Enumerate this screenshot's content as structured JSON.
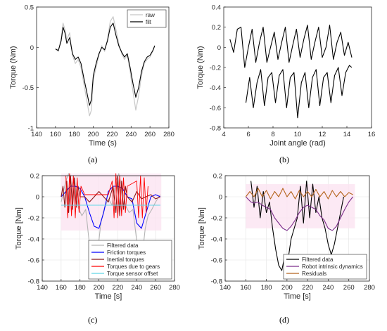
{
  "figure": {
    "captions": [
      "(a)",
      "(b)",
      "(c)",
      "(d)"
    ]
  },
  "chart_data": [
    {
      "id": "a",
      "type": "line",
      "xlabel": "Time (s)",
      "ylabel": "Torque (Nm)",
      "xlim": [
        140,
        280
      ],
      "ylim": [
        -1,
        0.5
      ],
      "xticks": [
        140,
        160,
        180,
        200,
        220,
        240,
        260,
        280
      ],
      "yticks": [
        -1,
        -0.5,
        0,
        0.5
      ],
      "xtick_labels": [
        "140",
        "160",
        "180",
        "200",
        "220",
        "240",
        "260",
        "280"
      ],
      "ytick_labels": [
        "-1",
        "-0.5",
        "0",
        "0.5"
      ],
      "grid": false,
      "legend_position": "top-right",
      "series": [
        {
          "name": "raw",
          "color": "#c8c8c8",
          "x": [
            160,
            163,
            166,
            168,
            170,
            172,
            175,
            178,
            181,
            184,
            187,
            190,
            193,
            196,
            198,
            200,
            203,
            206,
            209,
            212,
            215,
            218,
            221,
            224,
            227,
            230,
            233,
            236,
            239,
            242,
            245,
            248,
            251,
            254,
            257,
            260,
            263,
            265
          ],
          "y": [
            -0.02,
            -0.05,
            0.12,
            0.3,
            0.22,
            0.1,
            0.18,
            -0.1,
            -0.2,
            -0.15,
            -0.25,
            -0.45,
            -0.65,
            -0.85,
            -0.78,
            -0.4,
            -0.25,
            -0.1,
            0.02,
            -0.05,
            0.1,
            0.32,
            0.38,
            0.22,
            0.05,
            -0.08,
            -0.15,
            -0.1,
            -0.3,
            -0.55,
            -0.78,
            -0.6,
            -0.35,
            -0.2,
            -0.15,
            -0.12,
            -0.05,
            0.02
          ]
        },
        {
          "name": "filt",
          "color": "#000000",
          "x": [
            160,
            163,
            166,
            168,
            170,
            172,
            175,
            178,
            181,
            184,
            187,
            190,
            193,
            196,
            198,
            200,
            203,
            206,
            209,
            212,
            215,
            218,
            221,
            224,
            227,
            230,
            233,
            236,
            239,
            242,
            245,
            248,
            251,
            254,
            257,
            260,
            263,
            265
          ],
          "y": [
            -0.02,
            -0.04,
            0.08,
            0.25,
            0.18,
            0.05,
            0.12,
            -0.08,
            -0.15,
            -0.12,
            -0.2,
            -0.38,
            -0.55,
            -0.72,
            -0.65,
            -0.35,
            -0.2,
            -0.08,
            0.0,
            -0.03,
            0.08,
            0.25,
            0.3,
            0.15,
            0.02,
            -0.06,
            -0.12,
            -0.08,
            -0.25,
            -0.45,
            -0.62,
            -0.5,
            -0.3,
            -0.18,
            -0.12,
            -0.1,
            -0.04,
            0.02
          ]
        }
      ]
    },
    {
      "id": "b",
      "type": "line",
      "xlabel": "Joint angle (rad)",
      "ylabel": "Torque (Nm)",
      "xlim": [
        4,
        16
      ],
      "ylim": [
        -0.8,
        0.4
      ],
      "xticks": [
        4,
        6,
        8,
        10,
        12,
        14,
        16
      ],
      "yticks": [
        -0.8,
        -0.6,
        -0.4,
        -0.2,
        0,
        0.2,
        0.4
      ],
      "xtick_labels": [
        "4",
        "6",
        "8",
        "10",
        "12",
        "14",
        "16"
      ],
      "ytick_labels": [
        "-0.8",
        "-0.6",
        "-0.4",
        "-0.2",
        "0",
        "0.2",
        "0.4"
      ],
      "grid": false,
      "series": [
        {
          "color": "#000000",
          "x": [
            4.5,
            4.8,
            5.1,
            5.4,
            5.7,
            6.0,
            6.3,
            6.6,
            6.9,
            7.2,
            7.5,
            7.8,
            8.1,
            8.4,
            8.7,
            9.0,
            9.3,
            9.6,
            9.9,
            10.2,
            10.5,
            10.8,
            11.1,
            11.4,
            11.7,
            12.0,
            12.3,
            12.6,
            12.9,
            13.2,
            13.5,
            13.8,
            14.1,
            14.4
          ],
          "y": [
            0.08,
            -0.05,
            0.18,
            0.2,
            -0.2,
            0.0,
            0.18,
            -0.15,
            0.05,
            0.2,
            -0.15,
            0.0,
            0.15,
            -0.12,
            0.05,
            0.2,
            -0.15,
            0.02,
            0.18,
            -0.1,
            0.08,
            0.22,
            -0.12,
            0.05,
            0.2,
            -0.1,
            0.0,
            0.22,
            -0.12,
            0.05,
            0.15,
            -0.08,
            0.05,
            -0.1
          ]
        },
        {
          "color": "#000000",
          "x": [
            5.8,
            6.1,
            6.4,
            6.7,
            7.0,
            7.3,
            7.6,
            7.9,
            8.2,
            8.5,
            8.8,
            9.1,
            9.4,
            9.7,
            10.0,
            10.3,
            10.6,
            10.9,
            11.2,
            11.5,
            11.8,
            12.1,
            12.4,
            12.7,
            13.0,
            13.3,
            13.6,
            13.9,
            14.2,
            14.4
          ],
          "y": [
            -0.55,
            -0.3,
            -0.6,
            -0.35,
            -0.22,
            -0.58,
            -0.3,
            -0.25,
            -0.55,
            -0.28,
            -0.22,
            -0.6,
            -0.3,
            -0.25,
            -0.7,
            -0.35,
            -0.25,
            -0.6,
            -0.3,
            -0.22,
            -0.58,
            -0.3,
            -0.25,
            -0.55,
            -0.28,
            -0.2,
            -0.48,
            -0.25,
            -0.18,
            -0.2
          ]
        }
      ]
    },
    {
      "id": "c",
      "type": "line",
      "xlabel": "Time [s]",
      "ylabel": "Torque [Nm]",
      "xlim": [
        140,
        280
      ],
      "ylim": [
        -0.8,
        0.2
      ],
      "xticks": [
        140,
        160,
        180,
        200,
        220,
        240,
        260,
        280
      ],
      "yticks": [
        -0.8,
        -0.6,
        -0.4,
        -0.2,
        0,
        0.2
      ],
      "xtick_labels": [
        "140",
        "160",
        "180",
        "200",
        "220",
        "240",
        "260",
        "280"
      ],
      "ytick_labels": [
        "-0.8",
        "-0.6",
        "-0.4",
        "-0.2",
        "0",
        "0.2"
      ],
      "grid": true,
      "legend_position": "bottom-right",
      "series": [
        {
          "name": "Filtered data",
          "color": "#b4b4b4",
          "x": [
            160,
            165,
            168,
            171,
            174,
            178,
            182,
            186,
            190,
            193,
            196,
            199,
            202,
            206,
            210,
            214,
            218,
            221,
            224,
            228,
            232,
            236,
            240,
            243,
            246,
            249,
            252,
            256,
            260,
            265
          ],
          "y": [
            -0.05,
            0.15,
            0.22,
            0.1,
            0.18,
            -0.1,
            -0.18,
            -0.12,
            -0.45,
            -0.65,
            -0.72,
            -0.5,
            -0.25,
            -0.1,
            -0.02,
            -0.08,
            0.15,
            0.22,
            0.1,
            -0.08,
            -0.15,
            -0.12,
            -0.42,
            -0.6,
            -0.55,
            -0.3,
            -0.18,
            -0.12,
            -0.05,
            0.02
          ]
        },
        {
          "name": "Friction torques",
          "color": "#0000ff",
          "x": [
            160,
            165,
            170,
            175,
            180,
            185,
            190,
            195,
            200,
            205,
            210,
            215,
            220,
            225,
            230,
            235,
            240,
            245,
            250,
            255,
            260,
            265
          ],
          "y": [
            0.0,
            0.05,
            0.1,
            0.1,
            0.08,
            0.0,
            -0.15,
            -0.28,
            -0.3,
            -0.15,
            0.05,
            0.1,
            0.1,
            0.08,
            0.0,
            -0.02,
            -0.25,
            -0.3,
            -0.15,
            0.0,
            0.02,
            0.0
          ]
        },
        {
          "name": "Inertial torques",
          "color": "#8b1a1a",
          "x": [
            160,
            162,
            164,
            166,
            168,
            170,
            172,
            174,
            176,
            178,
            180,
            185,
            190,
            195,
            200,
            205,
            210,
            215,
            218,
            220,
            222,
            224,
            226,
            228,
            230,
            235,
            240,
            245,
            250,
            255,
            260,
            265
          ],
          "y": [
            0.0,
            0.1,
            -0.1,
            0.15,
            -0.15,
            0.2,
            -0.12,
            0.18,
            -0.1,
            0.1,
            0.0,
            0.0,
            -0.05,
            0.0,
            0.05,
            0.0,
            -0.05,
            0.1,
            -0.15,
            0.2,
            -0.18,
            0.15,
            -0.12,
            0.1,
            0.0,
            -0.05,
            0.05,
            -0.02,
            0.0,
            0.02,
            -0.02,
            0.0
          ]
        },
        {
          "name": "Torques due to gears",
          "color": "#ff0000",
          "x": [
            165,
            167,
            169,
            171,
            173,
            175,
            177,
            179,
            181,
            185,
            190,
            195,
            200,
            205,
            210,
            214,
            216,
            218,
            220,
            222,
            224,
            226,
            228,
            230,
            240,
            242,
            244,
            246,
            248,
            250,
            252
          ],
          "y": [
            0.2,
            -0.2,
            0.22,
            -0.18,
            0.2,
            -0.2,
            0.18,
            -0.15,
            0.1,
            0.02,
            0.02,
            0.02,
            0.02,
            0.02,
            0.02,
            0.15,
            -0.2,
            0.22,
            -0.2,
            0.2,
            -0.18,
            0.18,
            -0.15,
            0.1,
            0.15,
            -0.2,
            0.2,
            -0.2,
            0.18,
            -0.15,
            0.1
          ]
        },
        {
          "name": "Torque sensor offset",
          "color": "#5fd7e8",
          "x": [
            160,
            265
          ],
          "y": [
            -0.08,
            -0.08
          ]
        }
      ]
    },
    {
      "id": "d",
      "type": "line",
      "xlabel": "Time [s]",
      "ylabel": "Torque [Nm]",
      "xlim": [
        140,
        280
      ],
      "ylim": [
        -0.8,
        0.2
      ],
      "xticks": [
        140,
        160,
        180,
        200,
        220,
        240,
        260,
        280
      ],
      "yticks": [
        -0.8,
        -0.6,
        -0.4,
        -0.2,
        0,
        0.2
      ],
      "xtick_labels": [
        "140",
        "160",
        "180",
        "200",
        "220",
        "240",
        "260",
        "280"
      ],
      "ytick_labels": [
        "-0.8",
        "-0.6",
        "-0.4",
        "-0.2",
        "0",
        "0.2"
      ],
      "grid": true,
      "legend_position": "bottom-right",
      "series": [
        {
          "name": "Filtered data",
          "color": "#000000",
          "x": [
            165,
            168,
            171,
            174,
            177,
            180,
            183,
            186,
            189,
            192,
            195,
            198,
            201,
            204,
            207,
            210,
            213,
            216,
            219,
            222,
            225,
            228,
            231,
            234,
            237,
            240,
            243,
            246,
            249,
            252,
            255
          ],
          "y": [
            0.15,
            -0.1,
            0.1,
            -0.2,
            0.05,
            -0.15,
            -0.05,
            -0.3,
            -0.5,
            -0.65,
            -0.7,
            -0.55,
            -0.6,
            -0.4,
            -0.3,
            -0.2,
            0.1,
            -0.25,
            0.15,
            -0.2,
            0.12,
            -0.15,
            0.0,
            -0.2,
            -0.3,
            -0.45,
            -0.55,
            -0.45,
            -0.3,
            -0.15,
            0.0
          ]
        },
        {
          "name": "Robot intrinsic dynamics",
          "color": "#7b2c8a",
          "x": [
            160,
            162,
            165,
            168,
            172,
            176,
            180,
            184,
            188,
            192,
            196,
            200,
            204,
            208,
            212,
            216,
            220,
            224,
            228,
            232,
            236,
            240,
            244,
            248,
            252,
            256,
            260,
            264
          ],
          "y": [
            0.0,
            -0.02,
            -0.05,
            -0.06,
            -0.05,
            -0.08,
            -0.1,
            -0.12,
            -0.2,
            -0.25,
            -0.3,
            -0.32,
            -0.28,
            -0.22,
            -0.15,
            -0.1,
            -0.08,
            -0.1,
            -0.12,
            -0.18,
            -0.22,
            -0.3,
            -0.32,
            -0.28,
            -0.2,
            -0.12,
            -0.05,
            0.0
          ]
        },
        {
          "name": "Residuals",
          "color": "#b5651d",
          "x": [
            160,
            164,
            168,
            172,
            176,
            180,
            184,
            188,
            192,
            196,
            200,
            204,
            208,
            212,
            216,
            220,
            224,
            228,
            232,
            236,
            240,
            244,
            248,
            252,
            256,
            260,
            264
          ],
          "y": [
            0.0,
            0.05,
            0.0,
            0.08,
            0.0,
            0.06,
            -0.02,
            0.05,
            0.0,
            0.08,
            0.0,
            0.05,
            -0.02,
            0.06,
            0.0,
            0.05,
            0.0,
            0.07,
            0.0,
            0.05,
            -0.02,
            0.06,
            0.0,
            0.05,
            0.0,
            0.04,
            0.02
          ]
        }
      ]
    }
  ]
}
